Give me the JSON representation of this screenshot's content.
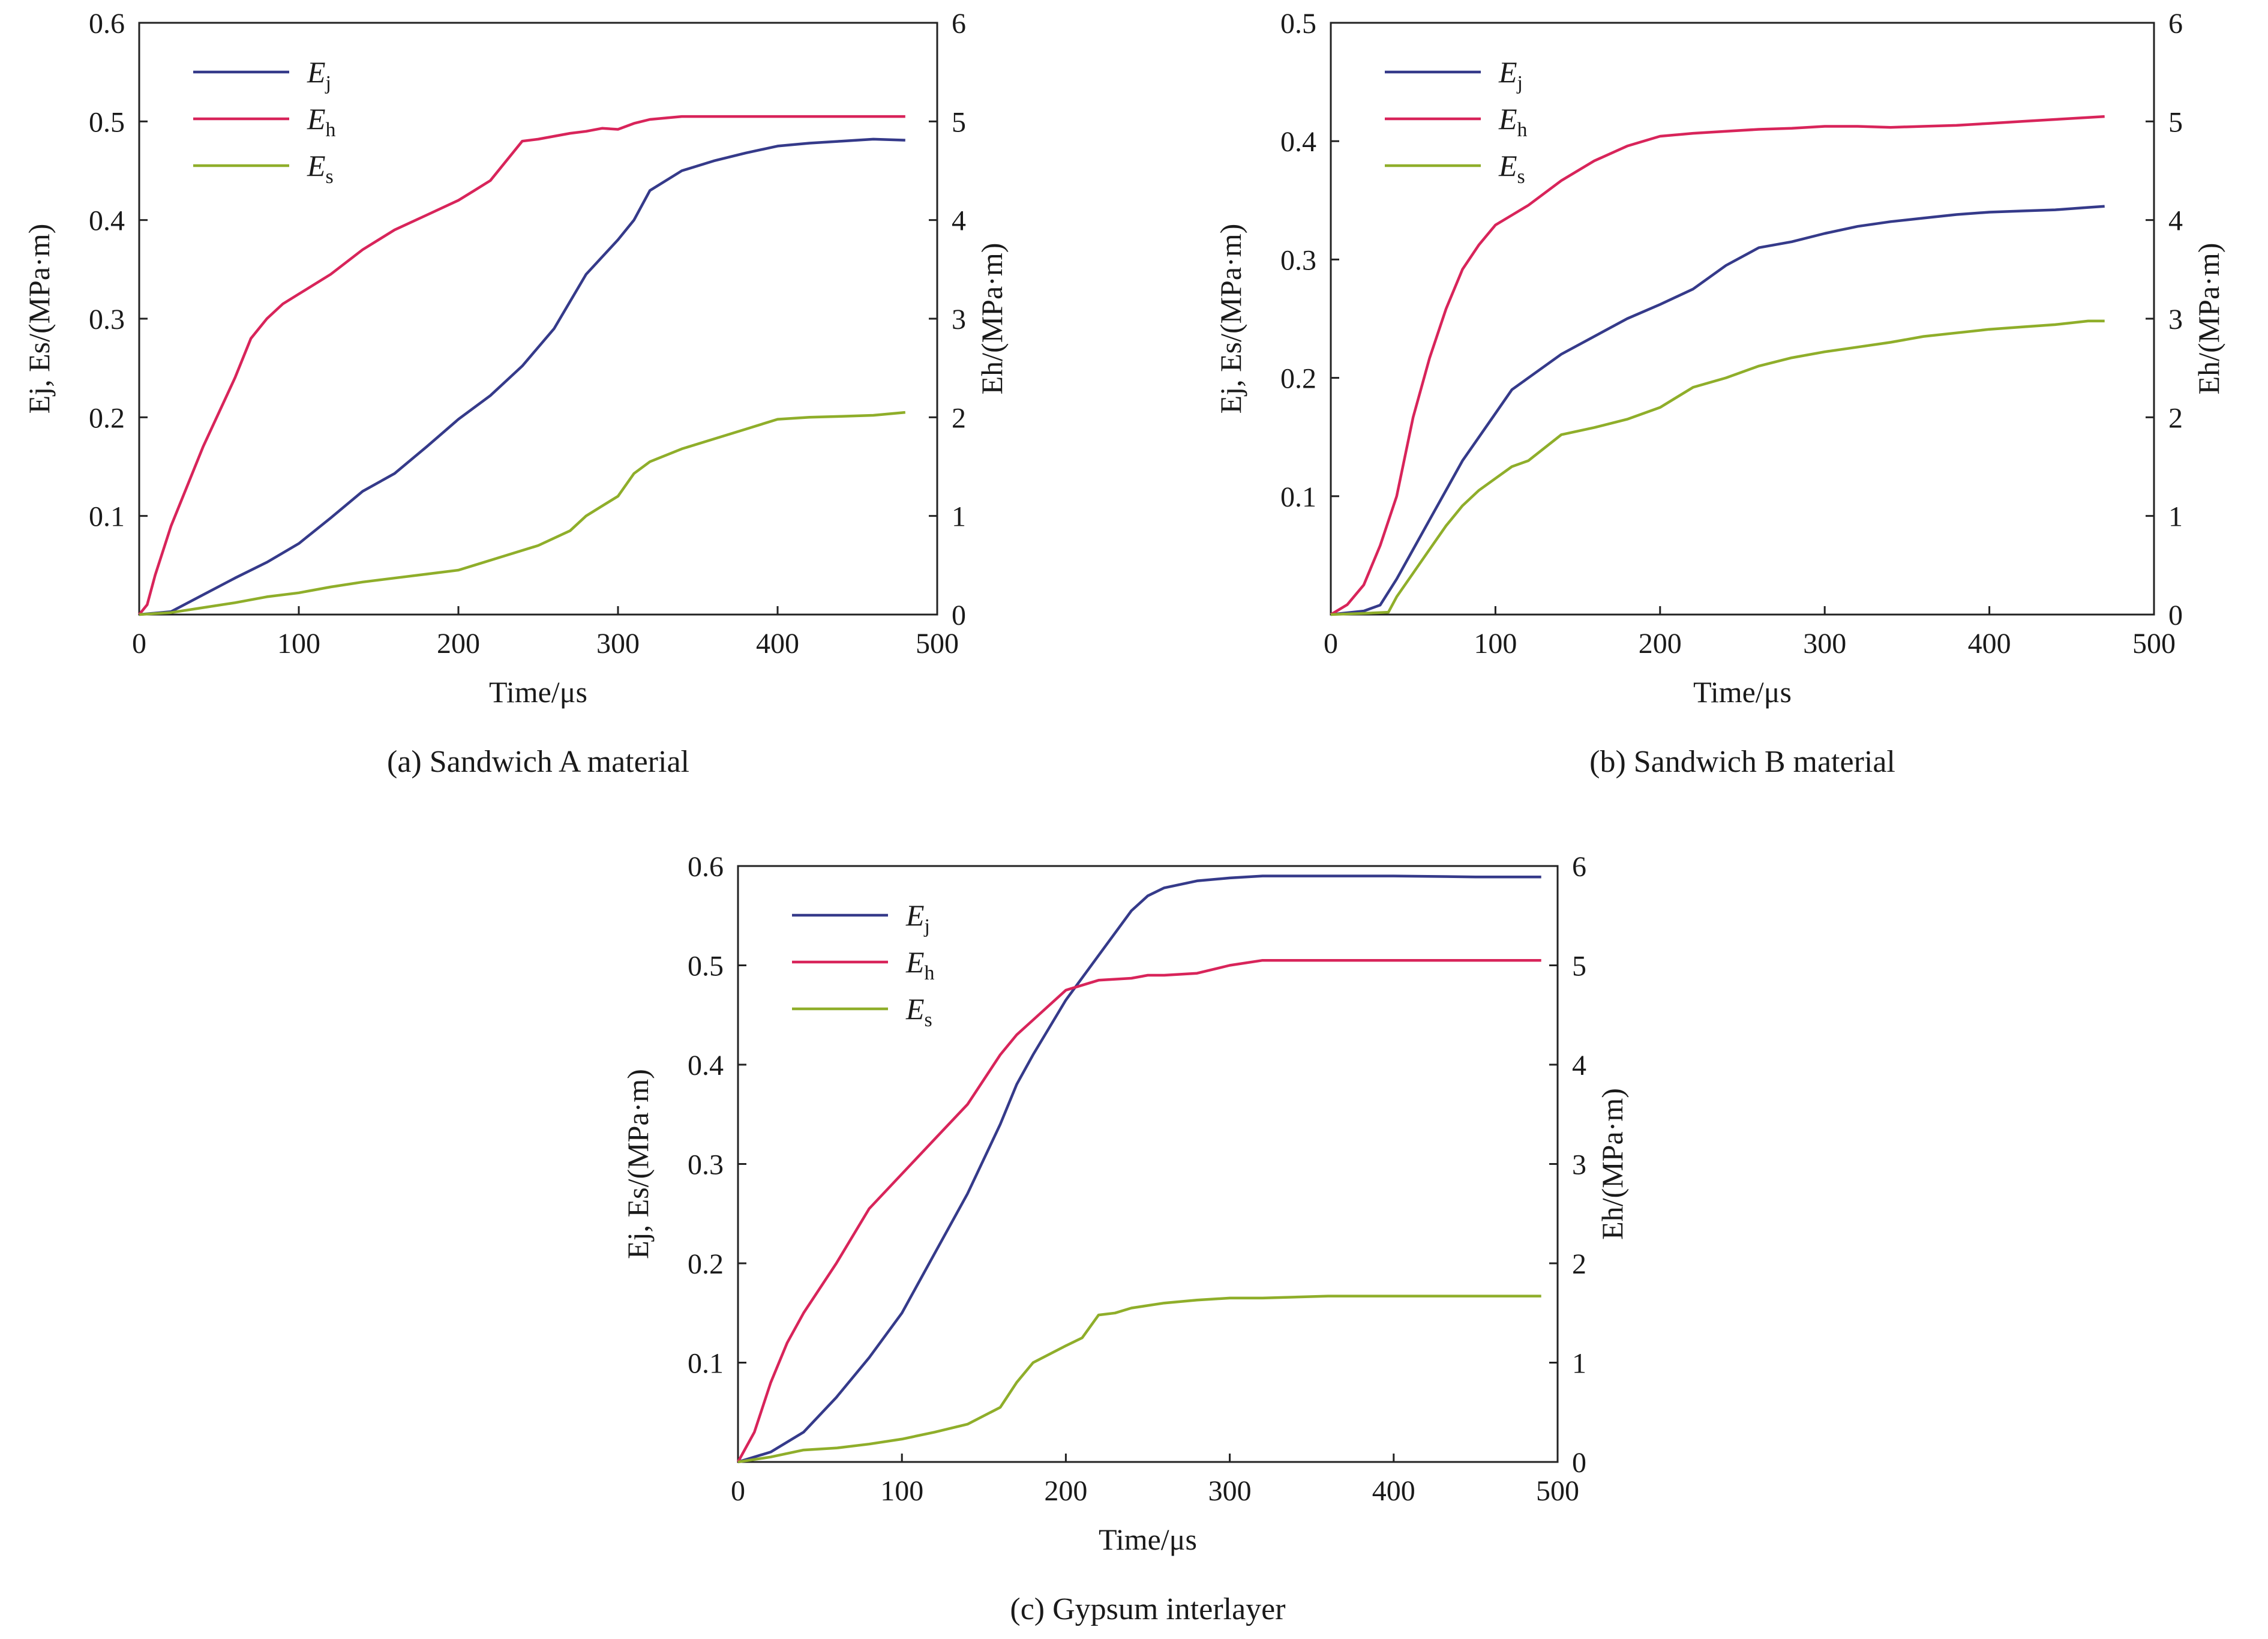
{
  "colors": {
    "Ej": "#353a8a",
    "Eh": "#d8245a",
    "Es": "#8fae2a"
  },
  "chart_data": [
    {
      "type": "line",
      "caption": "(a) Sandwich A material",
      "xlabel": "Time/μs",
      "ylabel": "Ej, Es/(MPa·m)",
      "y2label": "Eh/(MPa·m)",
      "xlim": [
        0,
        500
      ],
      "ylim": [
        0,
        0.6
      ],
      "y2lim": [
        0,
        6
      ],
      "xticks": [
        "0",
        "100",
        "200",
        "300",
        "400",
        "500"
      ],
      "yticks": [
        "0.1",
        "0.2",
        "0.3",
        "0.4",
        "0.5",
        "0.6"
      ],
      "y2ticks": [
        "0",
        "1",
        "2",
        "3",
        "4",
        "5",
        "6"
      ],
      "legend": [
        {
          "key": "Ej",
          "main": "E",
          "sub": "j"
        },
        {
          "key": "Eh",
          "main": "E",
          "sub": "h"
        },
        {
          "key": "Es",
          "main": "E",
          "sub": "s"
        }
      ],
      "series": [
        {
          "key": "Ej",
          "axis": "left",
          "x": [
            0,
            20,
            40,
            60,
            80,
            100,
            120,
            140,
            160,
            180,
            200,
            220,
            240,
            260,
            280,
            300,
            310,
            320,
            340,
            360,
            380,
            400,
            420,
            440,
            460,
            480
          ],
          "y": [
            0,
            0.003,
            0.02,
            0.037,
            0.053,
            0.072,
            0.098,
            0.125,
            0.143,
            0.17,
            0.198,
            0.222,
            0.252,
            0.29,
            0.345,
            0.38,
            0.4,
            0.43,
            0.45,
            0.46,
            0.468,
            0.475,
            0.478,
            0.48,
            0.482,
            0.481
          ]
        },
        {
          "key": "Eh",
          "axis": "right",
          "x": [
            0,
            5,
            10,
            20,
            30,
            40,
            60,
            70,
            80,
            90,
            100,
            120,
            140,
            160,
            180,
            200,
            210,
            220,
            230,
            240,
            250,
            260,
            270,
            280,
            290,
            300,
            310,
            320,
            340,
            360,
            400,
            480
          ],
          "y": [
            0,
            0.1,
            0.4,
            0.9,
            1.3,
            1.7,
            2.4,
            2.8,
            3.0,
            3.15,
            3.25,
            3.45,
            3.7,
            3.9,
            4.05,
            4.2,
            4.3,
            4.4,
            4.6,
            4.8,
            4.82,
            4.85,
            4.88,
            4.9,
            4.93,
            4.92,
            4.98,
            5.02,
            5.05,
            5.05,
            5.05,
            5.05
          ]
        },
        {
          "key": "Es",
          "axis": "left",
          "x": [
            0,
            20,
            40,
            60,
            80,
            100,
            120,
            140,
            160,
            180,
            200,
            210,
            230,
            250,
            270,
            280,
            290,
            300,
            310,
            320,
            340,
            360,
            380,
            400,
            420,
            440,
            460,
            480
          ],
          "y": [
            0,
            0.002,
            0.007,
            0.012,
            0.018,
            0.022,
            0.028,
            0.033,
            0.037,
            0.041,
            0.045,
            0.05,
            0.06,
            0.07,
            0.085,
            0.1,
            0.11,
            0.12,
            0.143,
            0.155,
            0.168,
            0.178,
            0.188,
            0.198,
            0.2,
            0.201,
            0.202,
            0.205
          ]
        }
      ]
    },
    {
      "type": "line",
      "caption": "(b) Sandwich B material",
      "xlabel": "Time/μs",
      "ylabel": "Ej, Es/(MPa·m)",
      "y2label": "Eh/(MPa·m)",
      "xlim": [
        0,
        500
      ],
      "ylim": [
        0,
        0.5
      ],
      "y2lim": [
        0,
        6
      ],
      "xticks": [
        "0",
        "100",
        "200",
        "300",
        "400",
        "500"
      ],
      "yticks": [
        "0.1",
        "0.2",
        "0.3",
        "0.4",
        "0.5"
      ],
      "y2ticks": [
        "0",
        "1",
        "2",
        "3",
        "4",
        "5",
        "6"
      ],
      "legend": [
        {
          "key": "Ej",
          "main": "E",
          "sub": "j"
        },
        {
          "key": "Eh",
          "main": "E",
          "sub": "h"
        },
        {
          "key": "Es",
          "main": "E",
          "sub": "s"
        }
      ],
      "series": [
        {
          "key": "Ej",
          "axis": "left",
          "x": [
            0,
            20,
            30,
            40,
            50,
            60,
            70,
            80,
            90,
            100,
            110,
            120,
            140,
            160,
            180,
            200,
            220,
            240,
            260,
            280,
            300,
            320,
            340,
            360,
            380,
            400,
            420,
            440,
            460,
            470
          ],
          "y": [
            0,
            0.003,
            0.008,
            0.03,
            0.055,
            0.08,
            0.105,
            0.13,
            0.15,
            0.17,
            0.19,
            0.2,
            0.22,
            0.235,
            0.25,
            0.262,
            0.275,
            0.295,
            0.31,
            0.315,
            0.322,
            0.328,
            0.332,
            0.335,
            0.338,
            0.34,
            0.341,
            0.342,
            0.344,
            0.345
          ]
        },
        {
          "key": "Eh",
          "axis": "right",
          "x": [
            0,
            10,
            20,
            30,
            40,
            50,
            60,
            70,
            80,
            90,
            100,
            110,
            120,
            140,
            160,
            180,
            200,
            220,
            240,
            260,
            280,
            300,
            320,
            340,
            360,
            380,
            400,
            420,
            440,
            460,
            470
          ],
          "y": [
            0,
            0.1,
            0.3,
            0.7,
            1.2,
            2.0,
            2.6,
            3.1,
            3.5,
            3.75,
            3.95,
            4.05,
            4.15,
            4.4,
            4.6,
            4.75,
            4.85,
            4.88,
            4.9,
            4.92,
            4.93,
            4.95,
            4.95,
            4.94,
            4.95,
            4.96,
            4.98,
            5.0,
            5.02,
            5.04,
            5.05
          ]
        },
        {
          "key": "Es",
          "axis": "left",
          "x": [
            0,
            20,
            35,
            40,
            50,
            60,
            70,
            80,
            90,
            100,
            110,
            120,
            140,
            160,
            180,
            200,
            220,
            240,
            260,
            280,
            300,
            320,
            340,
            360,
            380,
            400,
            420,
            440,
            460,
            470
          ],
          "y": [
            0,
            0.001,
            0.002,
            0.015,
            0.035,
            0.055,
            0.075,
            0.092,
            0.105,
            0.115,
            0.125,
            0.13,
            0.152,
            0.158,
            0.165,
            0.175,
            0.192,
            0.2,
            0.21,
            0.217,
            0.222,
            0.226,
            0.23,
            0.235,
            0.238,
            0.241,
            0.243,
            0.245,
            0.248,
            0.248
          ]
        }
      ]
    },
    {
      "type": "line",
      "caption": "(c) Gypsum interlayer",
      "xlabel": "Time/μs",
      "ylabel": "Ej, Es/(MPa·m)",
      "y2label": "Eh/(MPa·m)",
      "xlim": [
        0,
        500
      ],
      "ylim": [
        0,
        0.6
      ],
      "y2lim": [
        0,
        6
      ],
      "xticks": [
        "0",
        "100",
        "200",
        "300",
        "400",
        "500"
      ],
      "yticks": [
        "0.1",
        "0.2",
        "0.3",
        "0.4",
        "0.5",
        "0.6"
      ],
      "y2ticks": [
        "0",
        "1",
        "2",
        "3",
        "4",
        "5",
        "6"
      ],
      "legend": [
        {
          "key": "Ej",
          "main": "E",
          "sub": "j"
        },
        {
          "key": "Eh",
          "main": "E",
          "sub": "h"
        },
        {
          "key": "Es",
          "main": "E",
          "sub": "s"
        }
      ],
      "series": [
        {
          "key": "Ej",
          "axis": "left",
          "x": [
            0,
            20,
            40,
            60,
            80,
            100,
            120,
            140,
            160,
            170,
            180,
            200,
            220,
            240,
            250,
            260,
            280,
            300,
            320,
            350,
            400,
            450,
            490
          ],
          "y": [
            0,
            0.01,
            0.03,
            0.065,
            0.105,
            0.15,
            0.21,
            0.27,
            0.34,
            0.38,
            0.41,
            0.465,
            0.51,
            0.555,
            0.57,
            0.578,
            0.585,
            0.588,
            0.59,
            0.59,
            0.59,
            0.589,
            0.589
          ]
        },
        {
          "key": "Eh",
          "axis": "right",
          "x": [
            0,
            10,
            20,
            30,
            40,
            60,
            80,
            100,
            120,
            140,
            160,
            170,
            180,
            200,
            220,
            240,
            250,
            260,
            280,
            300,
            320,
            350,
            400,
            490
          ],
          "y": [
            0,
            0.3,
            0.8,
            1.2,
            1.5,
            2.0,
            2.55,
            2.9,
            3.25,
            3.6,
            4.1,
            4.3,
            4.45,
            4.75,
            4.85,
            4.87,
            4.9,
            4.9,
            4.92,
            5.0,
            5.05,
            5.05,
            5.05,
            5.05
          ]
        },
        {
          "key": "Es",
          "axis": "left",
          "x": [
            0,
            20,
            40,
            60,
            80,
            100,
            120,
            140,
            160,
            170,
            180,
            200,
            210,
            220,
            230,
            240,
            260,
            280,
            300,
            320,
            360,
            400,
            490
          ],
          "y": [
            0,
            0.005,
            0.012,
            0.014,
            0.018,
            0.023,
            0.03,
            0.038,
            0.055,
            0.08,
            0.1,
            0.117,
            0.125,
            0.148,
            0.15,
            0.155,
            0.16,
            0.163,
            0.165,
            0.165,
            0.167,
            0.167,
            0.167
          ]
        }
      ]
    }
  ]
}
